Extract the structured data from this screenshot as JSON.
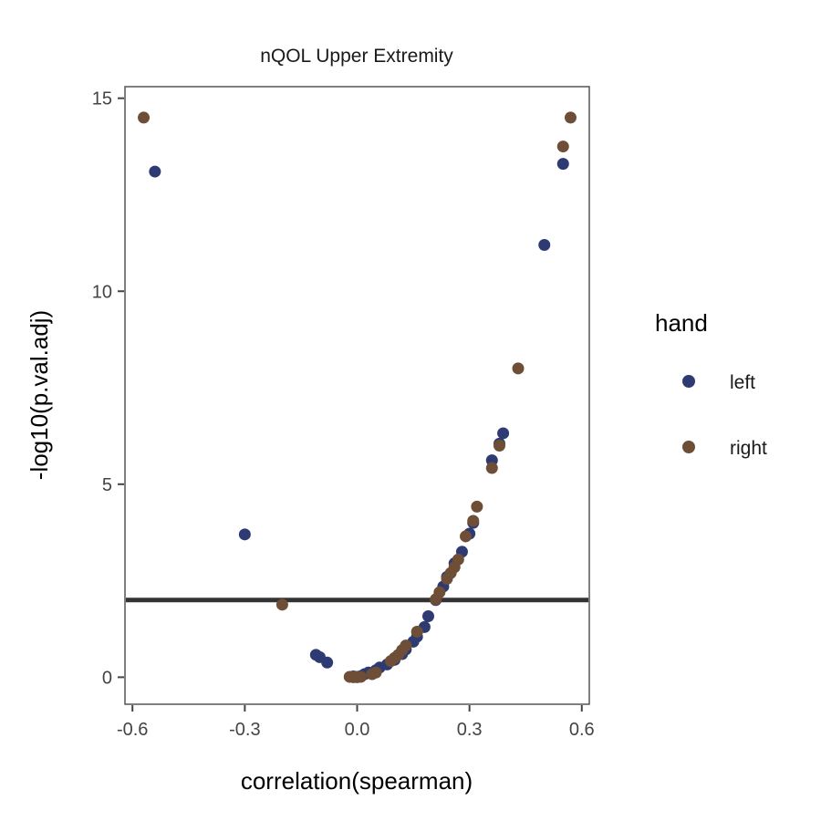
{
  "chart_data": {
    "type": "scatter",
    "title": "nQOL Upper Extremity",
    "xlabel": "correlation(spearman)",
    "ylabel": "-log10(p.val.adj)",
    "xlim": [
      -0.62,
      0.62
    ],
    "ylim": [
      -0.7,
      15.3
    ],
    "x_ticks": [
      -0.6,
      -0.3,
      0.0,
      0.3,
      0.6
    ],
    "x_tick_labels": [
      "-0.6",
      "-0.3",
      "0.0",
      "0.3",
      "0.6"
    ],
    "y_ticks": [
      0,
      5,
      10,
      15
    ],
    "y_tick_labels": [
      "0",
      "5",
      "10",
      "15"
    ],
    "hline": 2,
    "grid": false,
    "legend": {
      "title": "hand",
      "position": "right"
    },
    "series": [
      {
        "name": "left",
        "color": "#2e3b72",
        "points": [
          [
            -0.54,
            13.1
          ],
          [
            -0.3,
            3.7
          ],
          [
            -0.11,
            0.58
          ],
          [
            -0.1,
            0.52
          ],
          [
            -0.08,
            0.38
          ],
          [
            -0.01,
            0.02
          ],
          [
            0.0,
            0.01
          ],
          [
            0.01,
            0.03
          ],
          [
            0.02,
            0.08
          ],
          [
            0.03,
            0.12
          ],
          [
            0.05,
            0.18
          ],
          [
            0.06,
            0.25
          ],
          [
            0.08,
            0.33
          ],
          [
            0.1,
            0.45
          ],
          [
            0.12,
            0.6
          ],
          [
            0.13,
            0.72
          ],
          [
            0.15,
            0.92
          ],
          [
            0.16,
            1.05
          ],
          [
            0.18,
            1.3
          ],
          [
            0.19,
            1.58
          ],
          [
            0.21,
            2.0
          ],
          [
            0.23,
            2.35
          ],
          [
            0.24,
            2.6
          ],
          [
            0.26,
            2.95
          ],
          [
            0.28,
            3.25
          ],
          [
            0.3,
            3.72
          ],
          [
            0.31,
            4.0
          ],
          [
            0.36,
            5.62
          ],
          [
            0.38,
            6.05
          ],
          [
            0.39,
            6.32
          ],
          [
            0.5,
            11.2
          ],
          [
            0.55,
            13.3
          ]
        ]
      },
      {
        "name": "right",
        "color": "#6e4e36",
        "points": [
          [
            -0.57,
            14.5
          ],
          [
            -0.2,
            1.88
          ],
          [
            -0.02,
            0.01
          ],
          [
            -0.01,
            0.0
          ],
          [
            0.0,
            0.0
          ],
          [
            0.01,
            0.01
          ],
          [
            0.04,
            0.08
          ],
          [
            0.05,
            0.12
          ],
          [
            0.09,
            0.42
          ],
          [
            0.1,
            0.5
          ],
          [
            0.11,
            0.58
          ],
          [
            0.12,
            0.7
          ],
          [
            0.13,
            0.82
          ],
          [
            0.16,
            1.18
          ],
          [
            0.21,
            2.02
          ],
          [
            0.22,
            2.2
          ],
          [
            0.24,
            2.55
          ],
          [
            0.25,
            2.7
          ],
          [
            0.26,
            2.85
          ],
          [
            0.27,
            3.05
          ],
          [
            0.29,
            3.65
          ],
          [
            0.31,
            4.05
          ],
          [
            0.32,
            4.42
          ],
          [
            0.36,
            5.42
          ],
          [
            0.38,
            6.0
          ],
          [
            0.43,
            8.0
          ],
          [
            0.55,
            13.75
          ],
          [
            0.57,
            14.5
          ]
        ]
      }
    ]
  }
}
